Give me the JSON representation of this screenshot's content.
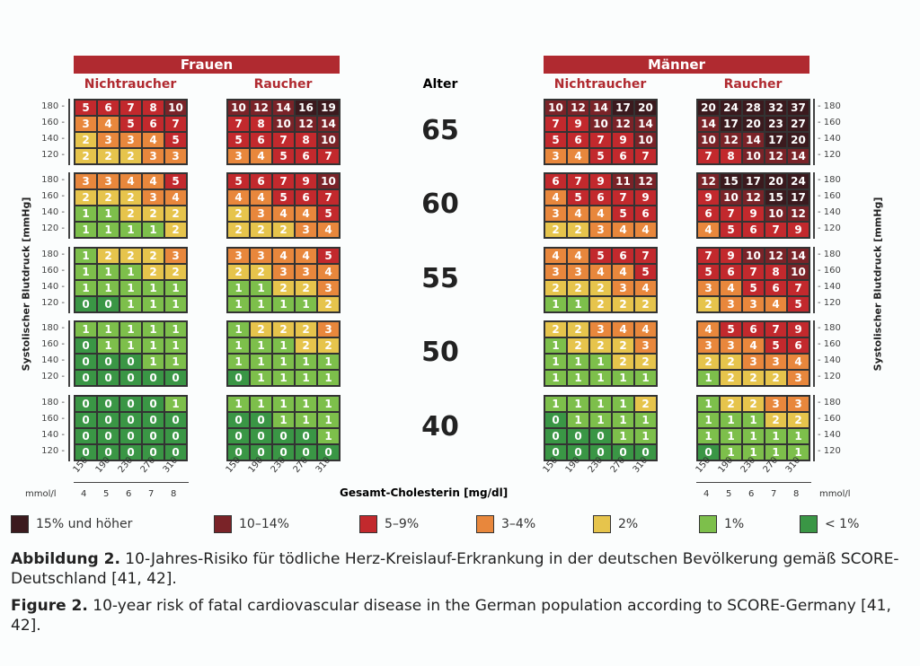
{
  "header": {
    "women": "Frauen",
    "men": "Männer",
    "nonsmoker": "Nichtraucher",
    "smoker": "Raucher",
    "age": "Alter"
  },
  "chart_data": {
    "type": "heatmap",
    "ylabel": "Systolischer Blutdruck [mmHg]",
    "xlabel": "Gesamt-Cholesterin [mg/dl]",
    "x_ticks_mgdl": [
      "150",
      "190",
      "230",
      "270",
      "310"
    ],
    "x_ticks_mmol": [
      "4",
      "5",
      "6",
      "7",
      "8"
    ],
    "mmol_unit": "mmol/l",
    "y_ticks": [
      "180",
      "160",
      "140",
      "120"
    ],
    "ages": [
      "65",
      "60",
      "55",
      "50",
      "40"
    ],
    "panels": {
      "women_nonsmoker": [
        [
          [
            5,
            6,
            7,
            8,
            10
          ],
          [
            3,
            4,
            5,
            6,
            7
          ],
          [
            2,
            3,
            3,
            4,
            5
          ],
          [
            2,
            2,
            2,
            3,
            3
          ]
        ],
        [
          [
            3,
            3,
            4,
            4,
            5
          ],
          [
            2,
            2,
            2,
            3,
            4
          ],
          [
            1,
            1,
            2,
            2,
            2
          ],
          [
            1,
            1,
            1,
            1,
            2
          ]
        ],
        [
          [
            1,
            2,
            2,
            2,
            3
          ],
          [
            1,
            1,
            1,
            2,
            2
          ],
          [
            1,
            1,
            1,
            1,
            1
          ],
          [
            0,
            0,
            1,
            1,
            1
          ]
        ],
        [
          [
            1,
            1,
            1,
            1,
            1
          ],
          [
            0,
            1,
            1,
            1,
            1
          ],
          [
            0,
            0,
            0,
            1,
            1
          ],
          [
            0,
            0,
            0,
            0,
            0
          ]
        ],
        [
          [
            0,
            0,
            0,
            0,
            1
          ],
          [
            0,
            0,
            0,
            0,
            0
          ],
          [
            0,
            0,
            0,
            0,
            0
          ],
          [
            0,
            0,
            0,
            0,
            0
          ]
        ]
      ],
      "women_smoker": [
        [
          [
            10,
            12,
            14,
            16,
            19
          ],
          [
            7,
            8,
            10,
            12,
            14
          ],
          [
            5,
            6,
            7,
            8,
            10
          ],
          [
            3,
            4,
            5,
            6,
            7
          ]
        ],
        [
          [
            5,
            6,
            7,
            9,
            10
          ],
          [
            4,
            4,
            5,
            6,
            7
          ],
          [
            2,
            3,
            4,
            4,
            5
          ],
          [
            2,
            2,
            2,
            3,
            4
          ]
        ],
        [
          [
            3,
            3,
            4,
            4,
            5
          ],
          [
            2,
            2,
            3,
            3,
            4
          ],
          [
            1,
            1,
            2,
            2,
            3
          ],
          [
            1,
            1,
            1,
            1,
            2
          ]
        ],
        [
          [
            1,
            2,
            2,
            2,
            3
          ],
          [
            1,
            1,
            1,
            2,
            2
          ],
          [
            1,
            1,
            1,
            1,
            1
          ],
          [
            0,
            1,
            1,
            1,
            1
          ]
        ],
        [
          [
            1,
            1,
            1,
            1,
            1
          ],
          [
            0,
            0,
            1,
            1,
            1
          ],
          [
            0,
            0,
            0,
            0,
            1
          ],
          [
            0,
            0,
            0,
            0,
            0
          ]
        ]
      ],
      "men_nonsmoker": [
        [
          [
            10,
            12,
            14,
            17,
            20
          ],
          [
            7,
            9,
            10,
            12,
            14
          ],
          [
            5,
            6,
            7,
            9,
            10
          ],
          [
            3,
            4,
            5,
            6,
            7
          ]
        ],
        [
          [
            6,
            7,
            9,
            11,
            12
          ],
          [
            4,
            5,
            6,
            7,
            9
          ],
          [
            3,
            4,
            4,
            5,
            6
          ],
          [
            2,
            2,
            3,
            4,
            4
          ]
        ],
        [
          [
            4,
            4,
            5,
            6,
            7
          ],
          [
            3,
            3,
            4,
            4,
            5
          ],
          [
            2,
            2,
            2,
            3,
            4
          ],
          [
            1,
            1,
            2,
            2,
            2
          ]
        ],
        [
          [
            2,
            2,
            3,
            4,
            4
          ],
          [
            1,
            2,
            2,
            2,
            3
          ],
          [
            1,
            1,
            1,
            2,
            2
          ],
          [
            1,
            1,
            1,
            1,
            1
          ]
        ],
        [
          [
            1,
            1,
            1,
            1,
            2
          ],
          [
            0,
            1,
            1,
            1,
            1
          ],
          [
            0,
            0,
            0,
            1,
            1
          ],
          [
            0,
            0,
            0,
            0,
            0
          ]
        ]
      ],
      "men_smoker": [
        [
          [
            20,
            24,
            28,
            32,
            37
          ],
          [
            14,
            17,
            20,
            23,
            27
          ],
          [
            10,
            12,
            14,
            17,
            20
          ],
          [
            7,
            8,
            10,
            12,
            14
          ]
        ],
        [
          [
            12,
            15,
            17,
            20,
            24
          ],
          [
            9,
            10,
            12,
            15,
            17
          ],
          [
            6,
            7,
            9,
            10,
            12
          ],
          [
            4,
            5,
            6,
            7,
            9
          ]
        ],
        [
          [
            7,
            9,
            10,
            12,
            14
          ],
          [
            5,
            6,
            7,
            8,
            10
          ],
          [
            3,
            4,
            5,
            6,
            7
          ],
          [
            2,
            3,
            3,
            4,
            5
          ]
        ],
        [
          [
            4,
            5,
            6,
            7,
            9
          ],
          [
            3,
            3,
            4,
            5,
            6
          ],
          [
            2,
            2,
            3,
            3,
            4
          ],
          [
            1,
            2,
            2,
            2,
            3
          ]
        ],
        [
          [
            1,
            2,
            2,
            3,
            3
          ],
          [
            1,
            1,
            1,
            2,
            2
          ],
          [
            1,
            1,
            1,
            1,
            1
          ],
          [
            0,
            1,
            1,
            1,
            1
          ]
        ]
      ]
    },
    "legend": [
      {
        "label": "15% und höher",
        "color": "#3b1a1e"
      },
      {
        "label": "10–14%",
        "color": "#7a2328"
      },
      {
        "label": "5–9%",
        "color": "#c2292d"
      },
      {
        "label": "3–4%",
        "color": "#e8873c"
      },
      {
        "label": "2%",
        "color": "#e6c44c"
      },
      {
        "label": "1%",
        "color": "#7dbf4b"
      },
      {
        "label": "< 1%",
        "color": "#3a9645"
      }
    ]
  },
  "caption": {
    "de_label": "Abbildung 2.",
    "de_text": " 10-Jahres-Risiko für tödliche Herz-Kreislauf-Erkrankung in der deutschen Bevölkerung gemäß SCORE-Deutschland [41, 42].",
    "en_label": "Figure 2.",
    "en_text": " 10-year risk of fatal cardiovascular disease in the German population according to SCORE-Germany [41, 42]."
  }
}
